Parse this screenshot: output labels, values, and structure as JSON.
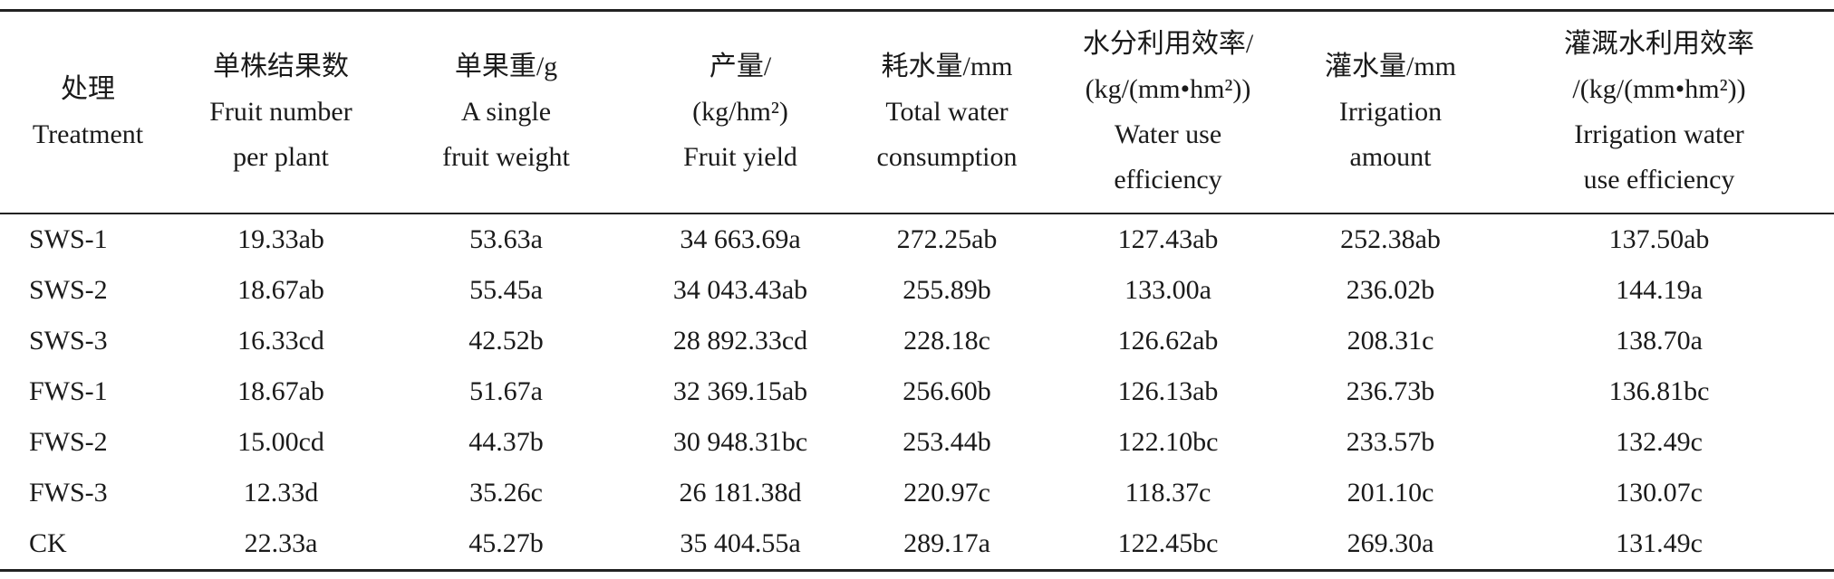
{
  "table": {
    "columns": [
      [
        "处理",
        "Treatment"
      ],
      [
        "单株结果数",
        "Fruit number",
        "per plant"
      ],
      [
        "单果重/g",
        "A single",
        "fruit weight"
      ],
      [
        "产量/",
        "(kg/hm²)",
        "Fruit yield"
      ],
      [
        "耗水量/mm",
        "Total water",
        "consumption"
      ],
      [
        "水分利用效率/",
        "(kg/(mm•hm²))",
        "Water use",
        "efficiency"
      ],
      [
        "灌水量/mm",
        "Irrigation",
        "amount"
      ],
      [
        "灌溉水利用效率",
        "/(kg/(mm•hm²))",
        "Irrigation water",
        "use efficiency"
      ]
    ],
    "rows": [
      [
        "SWS-1",
        "19.33ab",
        "53.63a",
        "34 663.69a",
        "272.25ab",
        "127.43ab",
        "252.38ab",
        "137.50ab"
      ],
      [
        "SWS-2",
        "18.67ab",
        "55.45a",
        "34 043.43ab",
        "255.89b",
        "133.00a",
        "236.02b",
        "144.19a"
      ],
      [
        "SWS-3",
        "16.33cd",
        "42.52b",
        "28 892.33cd",
        "228.18c",
        "126.62ab",
        "208.31c",
        "138.70a"
      ],
      [
        "FWS-1",
        "18.67ab",
        "51.67a",
        "32 369.15ab",
        "256.60b",
        "126.13ab",
        "236.73b",
        "136.81bc"
      ],
      [
        "FWS-2",
        "15.00cd",
        "44.37b",
        "30 948.31bc",
        "253.44b",
        "122.10bc",
        "233.57b",
        "132.49c"
      ],
      [
        "FWS-3",
        "12.33d",
        "35.26c",
        "26 181.38d",
        "220.97c",
        "118.37c",
        "201.10c",
        "130.07c"
      ],
      [
        "CK",
        "22.33a",
        "45.27b",
        "35 404.55a",
        "289.17a",
        "122.45bc",
        "269.30a",
        "131.49c"
      ]
    ]
  }
}
